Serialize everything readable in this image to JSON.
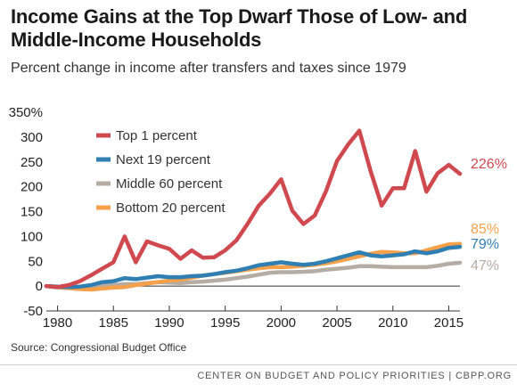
{
  "header": {
    "title": "Income Gains at the Top Dwarf Those of Low- and Middle-Income Households",
    "subtitle": "Percent change in income after transfers and taxes since 1979"
  },
  "source": "Source: Congressional Budget Office",
  "footer": "CENTER ON BUDGET AND POLICY PRIORITIES | CBPP.ORG",
  "chart_data": {
    "type": "line",
    "title": "Income Gains at the Top Dwarf Those of Low- and Middle-Income Households",
    "subtitle": "Percent change in income after transfers and taxes since 1979",
    "xlabel": "",
    "ylabel": "",
    "xlim": [
      1979,
      2016
    ],
    "ylim": [
      -50,
      350
    ],
    "x_ticks": [
      1980,
      1985,
      1990,
      1995,
      2000,
      2005,
      2010,
      2015
    ],
    "y_ticks": [
      -50,
      0,
      50,
      100,
      150,
      200,
      250,
      300,
      350
    ],
    "y_tick_labels": [
      "-50",
      "0",
      "50",
      "100",
      "150",
      "200",
      "250",
      "300",
      "350%"
    ],
    "grid": false,
    "legend_position": "top-left",
    "x": [
      1979,
      1980,
      1981,
      1982,
      1983,
      1984,
      1985,
      1986,
      1987,
      1988,
      1989,
      1990,
      1991,
      1992,
      1993,
      1994,
      1995,
      1996,
      1997,
      1998,
      1999,
      2000,
      2001,
      2002,
      2003,
      2004,
      2005,
      2006,
      2007,
      2008,
      2009,
      2010,
      2011,
      2012,
      2013,
      2014,
      2015,
      2016
    ],
    "series": [
      {
        "name": "Top 1 percent",
        "color": "#d0494f",
        "end_label": "226%",
        "values": [
          0,
          -2,
          2,
          10,
          22,
          35,
          48,
          100,
          48,
          90,
          82,
          75,
          55,
          72,
          57,
          58,
          72,
          92,
          125,
          162,
          186,
          215,
          152,
          125,
          142,
          190,
          252,
          285,
          313,
          232,
          162,
          197,
          197,
          272,
          190,
          227,
          244,
          226
        ]
      },
      {
        "name": "Next 19 percent",
        "color": "#2f7fb3",
        "end_label": "79%",
        "values": [
          0,
          -1,
          -2,
          -1,
          2,
          8,
          10,
          16,
          14,
          17,
          20,
          18,
          18,
          20,
          21,
          24,
          28,
          31,
          36,
          42,
          45,
          48,
          45,
          43,
          45,
          50,
          56,
          62,
          68,
          62,
          60,
          62,
          64,
          70,
          66,
          70,
          77,
          79
        ]
      },
      {
        "name": "Middle 60 percent",
        "color": "#b5aca4",
        "end_label": "47%",
        "values": [
          0,
          -3,
          -4,
          -4,
          -3,
          0,
          2,
          4,
          4,
          6,
          8,
          7,
          6,
          8,
          9,
          11,
          13,
          16,
          19,
          23,
          27,
          28,
          28,
          29,
          30,
          33,
          35,
          37,
          40,
          40,
          39,
          38,
          38,
          38,
          38,
          41,
          45,
          47
        ]
      },
      {
        "name": "Bottom 20 percent",
        "color": "#f7a04a",
        "end_label": "85%",
        "values": [
          0,
          -2,
          -4,
          -6,
          -7,
          -5,
          -3,
          -2,
          2,
          5,
          8,
          11,
          13,
          17,
          21,
          24,
          27,
          30,
          33,
          36,
          38,
          38,
          39,
          41,
          43,
          46,
          50,
          55,
          60,
          65,
          69,
          68,
          66,
          66,
          72,
          78,
          84,
          85
        ]
      }
    ]
  }
}
